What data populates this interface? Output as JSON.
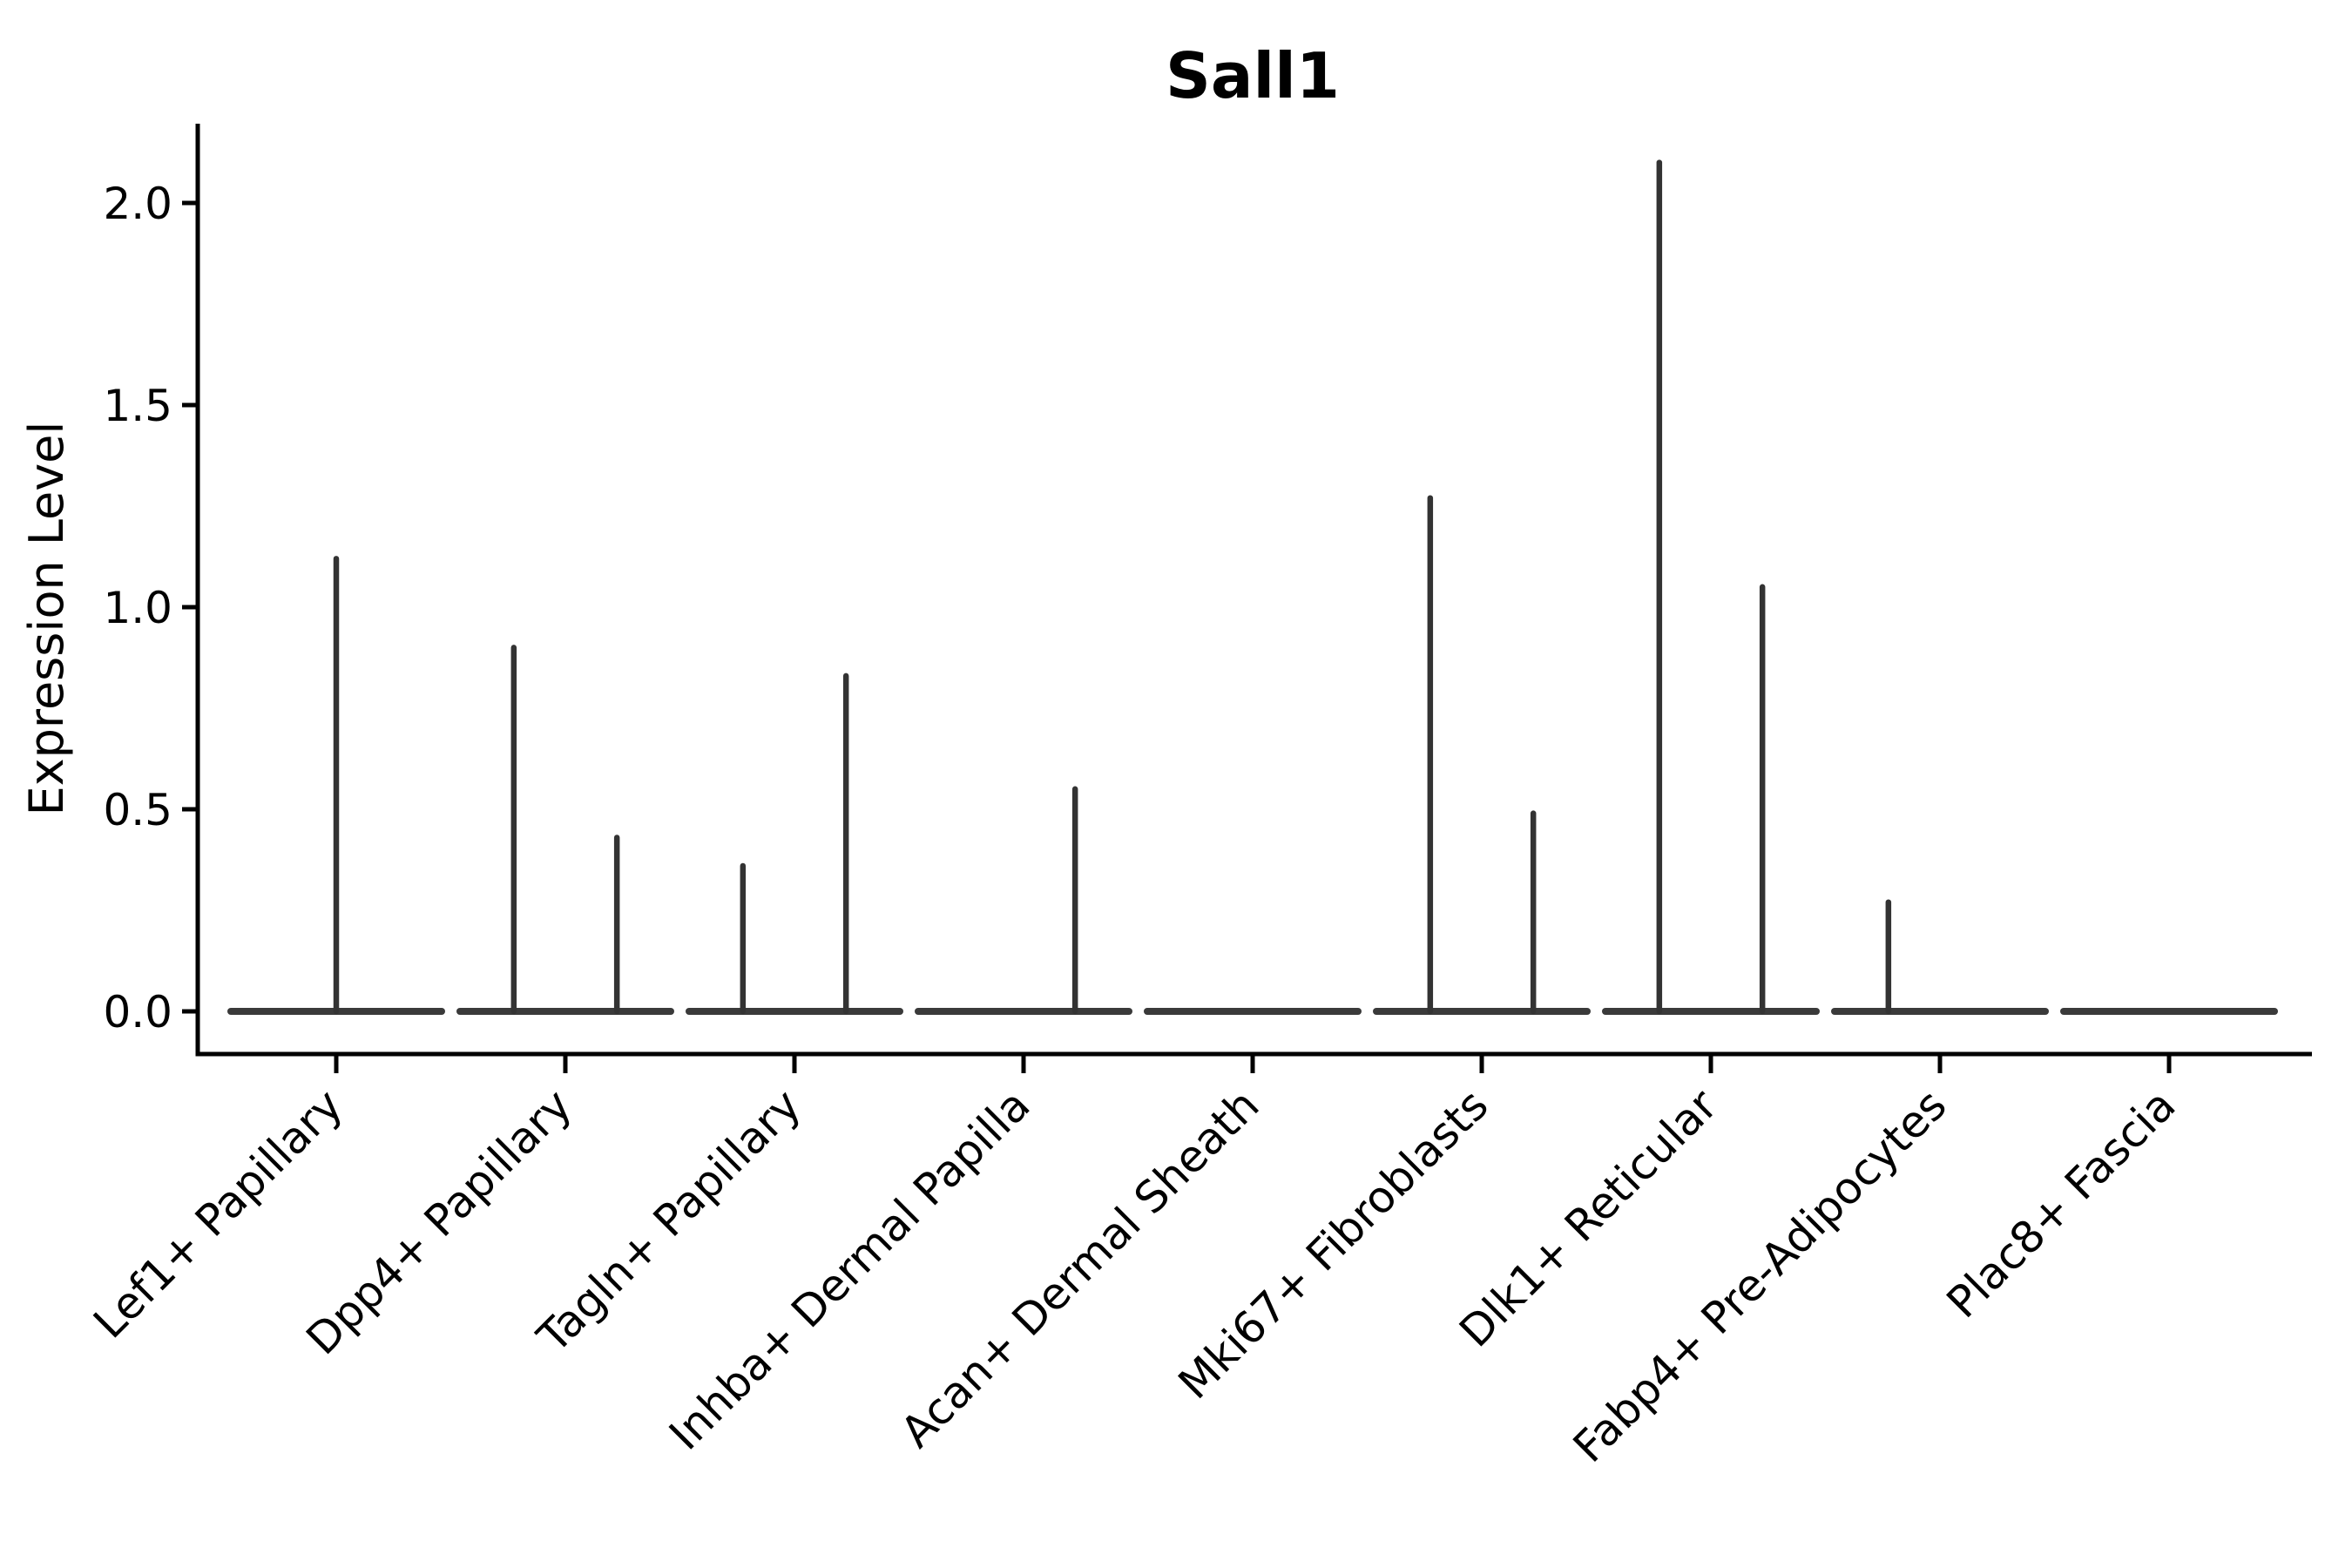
{
  "title": "Sall1",
  "colors": {
    "background": "#ffffff",
    "axis": "#000000",
    "text": "#000000",
    "violin_line": "#333333",
    "violin_baseline": "#3a3a3a"
  },
  "chart_data": {
    "type": "violin",
    "title": "Sall1",
    "xlabel": "",
    "ylabel": "Expression Level",
    "grid": false,
    "legend": null,
    "ylim": [
      -0.11,
      2.19
    ],
    "yticks": [
      0.0,
      0.5,
      1.0,
      1.5,
      2.0
    ],
    "ytick_labels": [
      "0.0",
      "0.5",
      "1.0",
      "1.5",
      "2.0"
    ],
    "categories": [
      "Lef1+ Papillary",
      "Dpp4+ Papillary",
      "Tagln+ Papillary",
      "Inhba+ Dermal Papilla",
      "Acan+ Dermal Sheath",
      "Mki67+ Fibroblasts",
      "Dlk1+ Reticular",
      "Fabp4+ Pre-Adipocytes",
      "Plac8+ Fascia"
    ],
    "xtick_rotation_deg": 45,
    "baseline_halfwidth_units": 0.46,
    "violins": [
      {
        "category": "Lef1+ Papillary",
        "spikes": [
          {
            "offset": 0.0,
            "max": 1.12
          }
        ]
      },
      {
        "category": "Dpp4+ Papillary",
        "spikes": [
          {
            "offset": -0.225,
            "max": 0.9
          },
          {
            "offset": 0.225,
            "max": 0.43
          }
        ]
      },
      {
        "category": "Tagln+ Papillary",
        "spikes": [
          {
            "offset": -0.225,
            "max": 0.36
          },
          {
            "offset": 0.225,
            "max": 0.83
          }
        ]
      },
      {
        "category": "Inhba+ Dermal Papilla",
        "spikes": [
          {
            "offset": 0.225,
            "max": 0.55
          }
        ]
      },
      {
        "category": "Acan+ Dermal Sheath",
        "spikes": []
      },
      {
        "category": "Mki67+ Fibroblasts",
        "spikes": [
          {
            "offset": -0.225,
            "max": 1.27
          },
          {
            "offset": 0.225,
            "max": 0.49
          }
        ]
      },
      {
        "category": "Dlk1+ Reticular",
        "spikes": [
          {
            "offset": -0.225,
            "max": 2.1
          },
          {
            "offset": 0.225,
            "max": 1.05
          }
        ]
      },
      {
        "category": "Fabp4+ Pre-Adipocytes",
        "spikes": [
          {
            "offset": -0.225,
            "max": 0.27
          }
        ]
      },
      {
        "category": "Plac8+ Fascia",
        "spikes": []
      }
    ]
  }
}
